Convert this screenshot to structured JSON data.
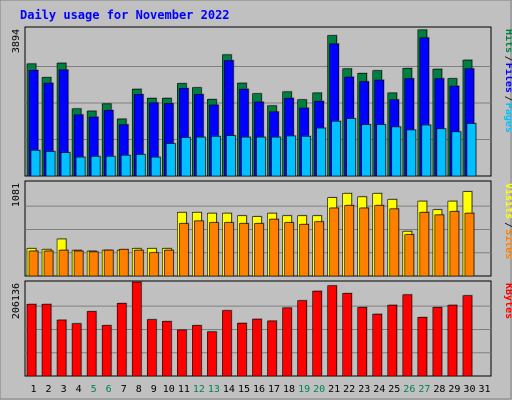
{
  "title": "Daily usage for November 2022",
  "colors": {
    "background": "#c0c0c0",
    "plot_bg": "#c0c0c0",
    "title": "#0000ff",
    "hits_front": "#008040",
    "files": "#0000ff",
    "pages": "#00c0ff",
    "visits": "#ffff00",
    "sites": "#ff8000",
    "kbytes": "#ff0000",
    "weekend_label": "#00805c"
  },
  "chart_data": [
    {
      "type": "bar",
      "panel": "hits-files-pages",
      "ymax_label": "3894",
      "ymax": 3894,
      "right_labels": [
        "Hits",
        "Files",
        "Pages"
      ],
      "categories": [
        "1",
        "2",
        "3",
        "4",
        "5",
        "6",
        "7",
        "8",
        "9",
        "10",
        "11",
        "12",
        "13",
        "14",
        "15",
        "16",
        "17",
        "18",
        "19",
        "20",
        "21",
        "22",
        "23",
        "24",
        "25",
        "26",
        "27",
        "28",
        "29",
        "30",
        "31"
      ],
      "weekend_days": [
        "5",
        "6",
        "12",
        "13",
        "19",
        "20",
        "26",
        "27"
      ],
      "series": [
        {
          "name": "Hits",
          "values": [
            2970,
            2610,
            2990,
            1780,
            1720,
            1910,
            1510,
            2300,
            2060,
            2060,
            2450,
            2340,
            2030,
            3210,
            2460,
            2180,
            1860,
            2230,
            2020,
            2200,
            3720,
            2840,
            2720,
            2790,
            2200,
            2850,
            3870,
            2830,
            2580,
            3070,
            0
          ]
        },
        {
          "name": "Files",
          "values": [
            2800,
            2460,
            2810,
            1620,
            1560,
            1740,
            1360,
            2160,
            1940,
            1920,
            2320,
            2160,
            1880,
            3060,
            2300,
            1960,
            1700,
            2060,
            1800,
            1980,
            3500,
            2620,
            2500,
            2540,
            2020,
            2580,
            3660,
            2580,
            2380,
            2840,
            0
          ]
        },
        {
          "name": "Pages",
          "values": [
            680,
            650,
            620,
            500,
            520,
            520,
            550,
            570,
            500,
            860,
            1020,
            1030,
            1050,
            1070,
            1030,
            1030,
            1030,
            1060,
            1050,
            1270,
            1450,
            1520,
            1360,
            1360,
            1300,
            1220,
            1350,
            1250,
            1170,
            1390,
            0
          ]
        }
      ]
    },
    {
      "type": "bar",
      "panel": "visits-sites",
      "ymax_label": "1081",
      "ymax": 1081,
      "right_labels": [
        "Visits",
        "Sites"
      ],
      "series": [
        {
          "name": "Visits",
          "values": [
            320,
            310,
            430,
            300,
            290,
            300,
            300,
            320,
            320,
            320,
            740,
            740,
            730,
            730,
            700,
            690,
            730,
            700,
            700,
            700,
            910,
            960,
            920,
            960,
            890,
            520,
            870,
            770,
            870,
            980,
            0
          ]
        },
        {
          "name": "Sites",
          "values": [
            290,
            290,
            300,
            290,
            280,
            300,
            310,
            300,
            270,
            300,
            610,
            640,
            620,
            620,
            610,
            610,
            660,
            620,
            600,
            630,
            790,
            820,
            790,
            820,
            780,
            480,
            740,
            710,
            750,
            730,
            0
          ]
        }
      ]
    },
    {
      "type": "bar",
      "panel": "kbytes",
      "ymax_label": "206136",
      "ymax": 206136,
      "right_labels": [
        "KBytes"
      ],
      "series": [
        {
          "name": "KBytes",
          "values": [
            159000,
            159000,
            124000,
            116000,
            143000,
            112000,
            161000,
            208000,
            125000,
            121000,
            102000,
            112000,
            98000,
            145000,
            117000,
            126000,
            122000,
            151000,
            167000,
            188000,
            200000,
            183000,
            152000,
            137000,
            157000,
            180000,
            130000,
            152000,
            157000,
            178000,
            0
          ]
        }
      ]
    }
  ]
}
